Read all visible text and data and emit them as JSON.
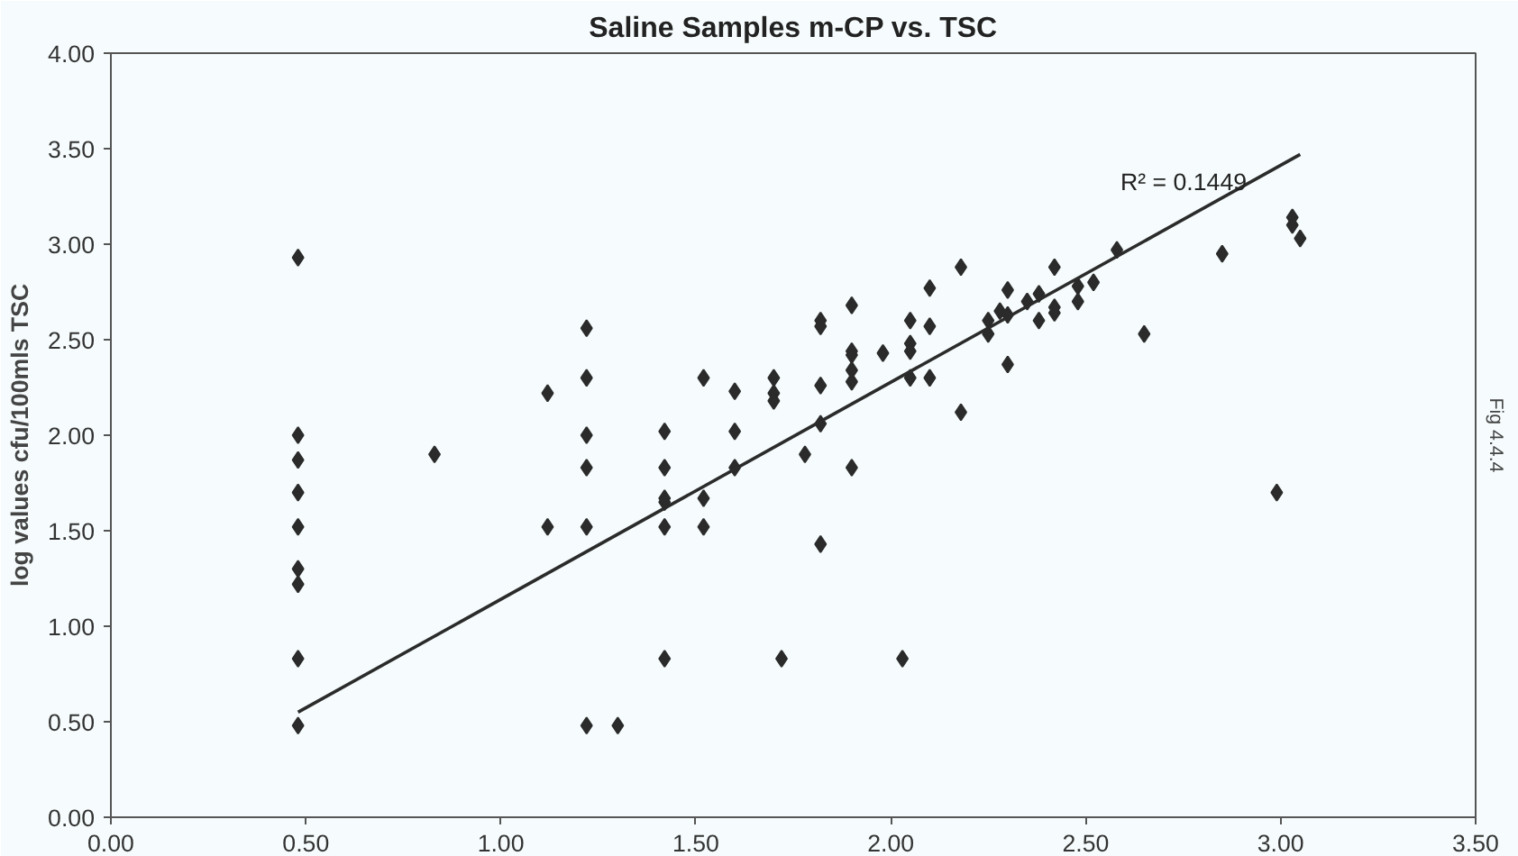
{
  "chart_data": {
    "type": "scatter",
    "title": "Saline Samples m-CP vs. TSC",
    "ylabel": "log values cfu/100mls TSC",
    "xlim": [
      0,
      3.5
    ],
    "ylim": [
      0,
      4
    ],
    "xticks": [
      {
        "value": 0,
        "label": "0.00"
      },
      {
        "value": 0.5,
        "label": "0.50"
      },
      {
        "value": 1,
        "label": "1.00"
      },
      {
        "value": 1.5,
        "label": "1.50"
      },
      {
        "value": 2,
        "label": "2.00"
      },
      {
        "value": 2.5,
        "label": "2.50"
      },
      {
        "value": 3,
        "label": "3.00"
      },
      {
        "value": 3.5,
        "label": "3.50"
      }
    ],
    "yticks": [
      {
        "value": 0,
        "label": "0.00"
      },
      {
        "value": 0.5,
        "label": "0.50"
      },
      {
        "value": 1,
        "label": "1.00"
      },
      {
        "value": 1.5,
        "label": "1.50"
      },
      {
        "value": 2,
        "label": "2.00"
      },
      {
        "value": 2.5,
        "label": "2.50"
      },
      {
        "value": 3,
        "label": "3.00"
      },
      {
        "value": 3.5,
        "label": "3.50"
      },
      {
        "value": 4,
        "label": "4.00"
      }
    ],
    "grid": false,
    "marker": "diamond",
    "annotations": [
      "R² = 0.1449",
      "Fig 4.4.4"
    ],
    "series": [
      {
        "color": "#2b2b2b",
        "x": [
          0.48,
          0.48,
          0.48,
          0.48,
          0.48,
          0.48,
          0.48,
          0.48,
          0.48,
          0.83,
          1.12,
          1.12,
          1.22,
          1.22,
          1.22,
          1.22,
          1.22,
          1.22,
          1.3,
          1.42,
          1.42,
          1.42,
          1.42,
          1.42,
          1.42,
          1.52,
          1.52,
          1.52,
          1.6,
          1.6,
          1.6,
          1.7,
          1.7,
          1.7,
          1.72,
          1.78,
          1.82,
          1.82,
          1.82,
          1.82,
          1.82,
          1.9,
          1.9,
          1.9,
          1.9,
          1.9,
          1.9,
          1.98,
          2.03,
          2.05,
          2.05,
          2.05,
          2.05,
          2.1,
          2.1,
          2.1,
          2.18,
          2.18,
          2.25,
          2.25,
          2.28,
          2.3,
          2.3,
          2.3,
          2.35,
          2.38,
          2.38,
          2.42,
          2.42,
          2.42,
          2.48,
          2.48,
          2.52,
          2.58,
          2.65,
          2.85,
          2.99,
          3.03,
          3.03,
          3.05
        ],
        "values": [
          2.93,
          2.0,
          1.87,
          1.7,
          1.52,
          1.3,
          1.22,
          0.83,
          0.48,
          1.9,
          2.22,
          1.52,
          2.56,
          2.3,
          2.0,
          1.83,
          1.52,
          0.48,
          0.48,
          2.02,
          1.83,
          1.67,
          1.65,
          1.52,
          0.83,
          2.3,
          1.67,
          1.52,
          2.23,
          2.02,
          1.83,
          2.3,
          2.22,
          2.18,
          0.83,
          1.9,
          2.6,
          2.57,
          2.26,
          2.06,
          1.43,
          2.68,
          2.44,
          2.42,
          2.34,
          2.28,
          1.83,
          2.43,
          0.83,
          2.6,
          2.48,
          2.44,
          2.3,
          2.77,
          2.57,
          2.3,
          2.88,
          2.12,
          2.6,
          2.53,
          2.65,
          2.76,
          2.63,
          2.37,
          2.7,
          2.74,
          2.6,
          2.88,
          2.67,
          2.64,
          2.78,
          2.7,
          2.8,
          2.97,
          2.53,
          2.95,
          1.7,
          3.14,
          3.1,
          3.03
        ]
      },
      {
        "type": "line",
        "color": "#2b2b2b",
        "line_style": "solid",
        "marker": "none",
        "x": [
          0.48,
          3.05
        ],
        "values": [
          0.55,
          3.47
        ]
      }
    ]
  }
}
